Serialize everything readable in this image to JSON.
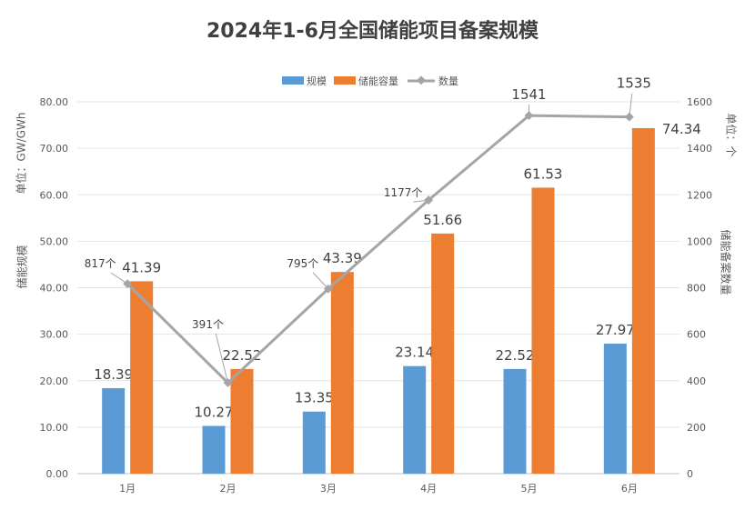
{
  "chart_data": {
    "type": "bar+line",
    "title": "2024年1-6月全国储能项目备案规模",
    "categories": [
      "1月",
      "2月",
      "3月",
      "4月",
      "5月",
      "6月"
    ],
    "series": [
      {
        "name": "规模",
        "type": "bar",
        "axis": "left",
        "color": "#5B9BD5",
        "values": [
          18.39,
          10.27,
          13.35,
          23.14,
          22.52,
          27.97
        ],
        "labels": [
          "18.39",
          "10.27",
          "13.35",
          "23.14",
          "22.52",
          "27.97"
        ]
      },
      {
        "name": "储能容量",
        "type": "bar",
        "axis": "left",
        "color": "#ED7D31",
        "values": [
          41.39,
          22.52,
          43.39,
          51.66,
          61.53,
          74.34
        ],
        "labels": [
          "41.39",
          "22.52",
          "43.39",
          "51.66",
          "61.53",
          "74.34"
        ]
      },
      {
        "name": "数量",
        "type": "line",
        "axis": "right",
        "color": "#A5A5A5",
        "values": [
          817,
          391,
          795,
          1177,
          1541,
          1535
        ],
        "labels": [
          "817个",
          "391个",
          "795个",
          "1177个",
          "1541",
          "1535"
        ]
      }
    ],
    "left_axis": {
      "unit_label": "单位：GW/GWh",
      "label": "储能规模",
      "ylim": [
        0,
        80
      ],
      "ticks": [
        "0.00",
        "10.00",
        "20.00",
        "30.00",
        "40.00",
        "50.00",
        "60.00",
        "70.00",
        "80.00"
      ]
    },
    "right_axis": {
      "unit_label": "单位：个",
      "label": "储能备案数量",
      "ylim": [
        0,
        1600
      ],
      "ticks": [
        "0",
        "200",
        "400",
        "600",
        "800",
        "1000",
        "1200",
        "1400",
        "1600"
      ]
    },
    "grid": true,
    "legend": "top"
  }
}
